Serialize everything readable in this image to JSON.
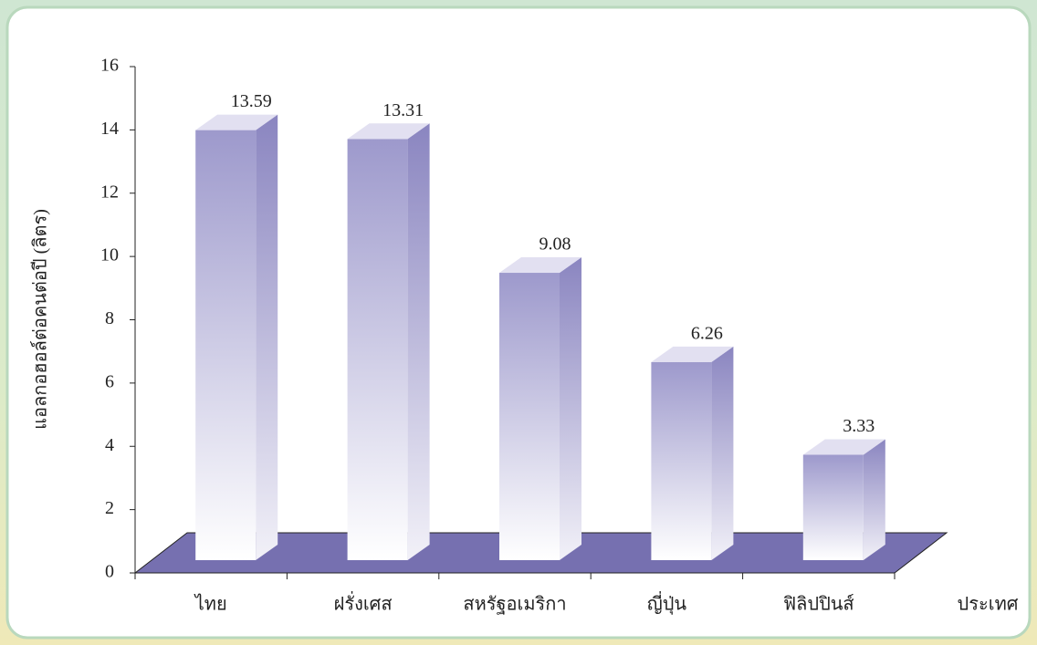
{
  "chart_data": {
    "type": "bar3d",
    "categories": [
      "ไทย",
      "ฝรั่งเศส",
      "สหรัฐอเมริกา",
      "ญี่ปุ่น",
      "ฟิลิปปินส์"
    ],
    "values": [
      13.59,
      13.31,
      9.08,
      6.26,
      3.33
    ],
    "color": "#9d99cc",
    "floor_color": "#7670b0",
    "y_label": "แอลกอฮอล์ต่อคนต่อปี (ลิตร)",
    "x_label": "ประเทศ",
    "ylim": [
      0,
      16
    ],
    "yticks": [
      0,
      2,
      4,
      6,
      8,
      10,
      12,
      14,
      16
    ]
  }
}
